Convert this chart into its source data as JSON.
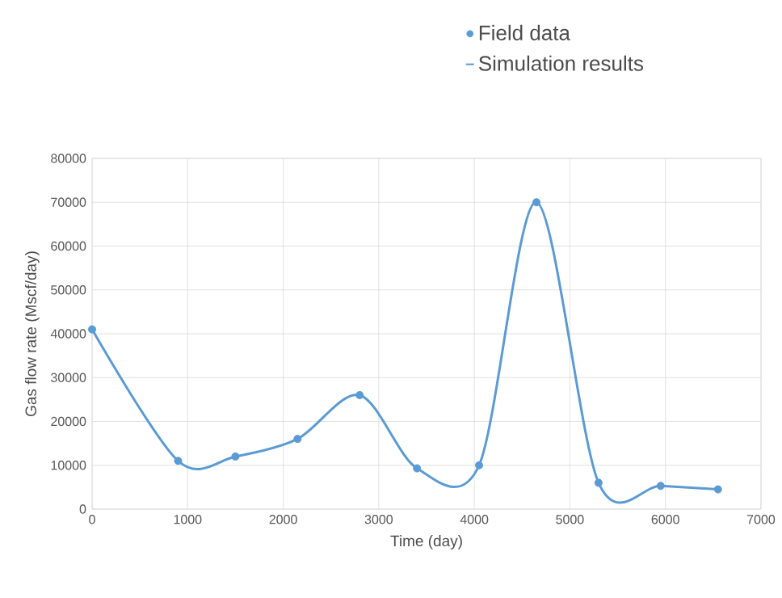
{
  "chart_data": {
    "type": "line",
    "xlabel": "Time (day)",
    "ylabel": "Gas flow rate (Mscf/day)",
    "x": [
      0,
      900,
      1500,
      2150,
      2800,
      3400,
      4050,
      4650,
      5300,
      5950,
      6550
    ],
    "series": [
      {
        "name": "Field data",
        "type": "scatter",
        "marker": "circle",
        "color": "#5b9bd5",
        "values": [
          41000,
          11000,
          12000,
          16000,
          26000,
          9300,
          10000,
          70000,
          6000,
          5300,
          4500
        ]
      },
      {
        "name": "Simulation results",
        "type": "line",
        "line_style": "solid",
        "color": "#5b9bd5",
        "values": [
          41000,
          11000,
          12000,
          16000,
          26000,
          9300,
          10000,
          70000,
          6000,
          5300,
          4500
        ]
      }
    ],
    "xlim": [
      0,
      7000
    ],
    "xticks": [
      0,
      1000,
      2000,
      3000,
      4000,
      5000,
      6000,
      7000
    ],
    "ylim": [
      0,
      80000
    ],
    "yticks": [
      0,
      10000,
      20000,
      30000,
      40000,
      50000,
      60000,
      70000,
      80000
    ],
    "grid": true,
    "legend": "top right"
  }
}
